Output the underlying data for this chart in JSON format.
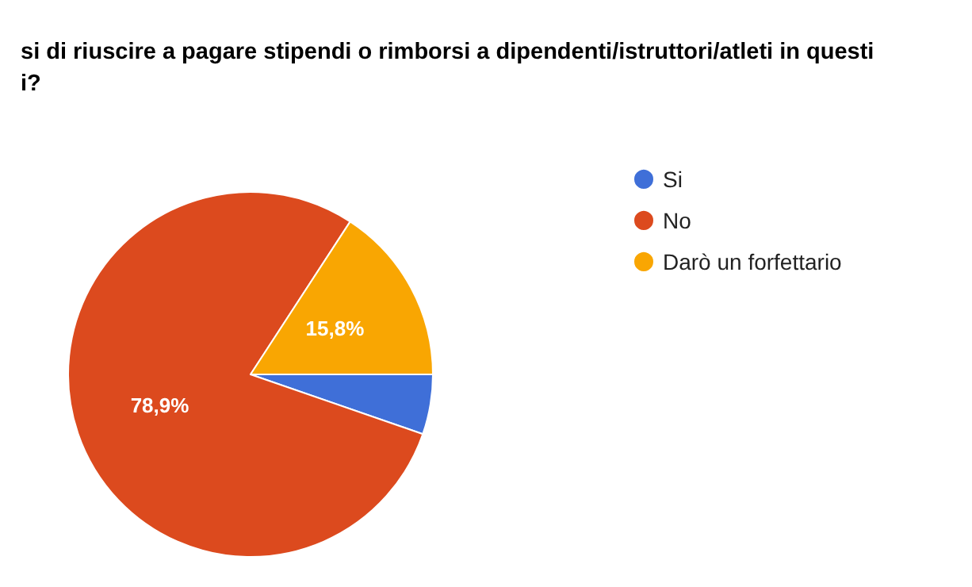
{
  "chart_data": {
    "type": "pie",
    "title": "si di riuscire a pagare stipendi o rimborsi a dipendenti/istruttori/atleti in questi\ni?",
    "categories": [
      "Si",
      "No",
      "Darò un forfettario"
    ],
    "values": [
      5.3,
      78.9,
      15.8
    ],
    "colors": [
      "#3f6fd8",
      "#dc4a1e",
      "#f9a602"
    ],
    "value_labels": [
      null,
      "78,9%",
      "15,8%"
    ],
    "legend": "right"
  }
}
